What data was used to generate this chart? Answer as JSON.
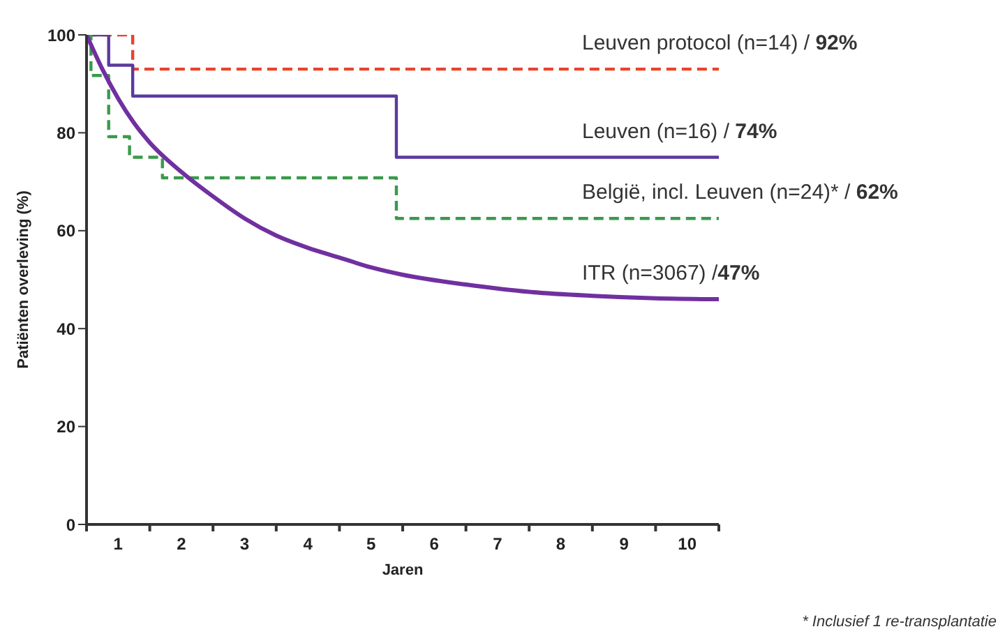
{
  "chart_data": {
    "type": "step",
    "xlabel": "Jaren",
    "ylabel": "Patiënten overleving (%)",
    "xlim": [
      0,
      10
    ],
    "xticks": [
      {
        "value": 0,
        "label": null
      },
      {
        "value": 0.5,
        "label": "1"
      },
      {
        "value": 1,
        "label": null
      },
      {
        "value": 1.5,
        "label": "2"
      },
      {
        "value": 2,
        "label": null
      },
      {
        "value": 2.5,
        "label": "3"
      },
      {
        "value": 3,
        "label": null
      },
      {
        "value": 3.5,
        "label": "4"
      },
      {
        "value": 4,
        "label": null
      },
      {
        "value": 4.5,
        "label": "5"
      },
      {
        "value": 5,
        "label": null
      },
      {
        "value": 5.5,
        "label": "6"
      },
      {
        "value": 6,
        "label": null
      },
      {
        "value": 6.5,
        "label": "7"
      },
      {
        "value": 7,
        "label": null
      },
      {
        "value": 7.5,
        "label": "8"
      },
      {
        "value": 8,
        "label": null
      },
      {
        "value": 8.5,
        "label": "9"
      },
      {
        "value": 9,
        "label": null
      },
      {
        "value": 9.5,
        "label": "10"
      },
      {
        "value": 10,
        "label": null
      }
    ],
    "ylim": [
      0,
      100
    ],
    "yticks": [
      0,
      20,
      40,
      60,
      80,
      100
    ],
    "grid": false,
    "legend": false,
    "marker": "none",
    "series": [
      {
        "name": "Leuven protocol (n=14) / 92%",
        "color": "#e8432e",
        "line_style": "dashed",
        "x": [
          0,
          0.73,
          10
        ],
        "values": [
          100,
          93,
          93
        ]
      },
      {
        "name": "Leuven (n=16) / 74%",
        "color": "#5b3a9e",
        "line_style": "solid",
        "x": [
          0,
          0.35,
          0.73,
          4.9,
          10
        ],
        "values": [
          100,
          93.8,
          87.5,
          75,
          75
        ]
      },
      {
        "name": "België, incl. Leuven (n=24)* / 62%",
        "color": "#3a9a4a",
        "line_style": "dashed",
        "x": [
          0,
          0.07,
          0.35,
          0.68,
          1.2,
          4.9,
          10
        ],
        "values": [
          100,
          91.7,
          79.2,
          75,
          70.8,
          62.5,
          62.5
        ]
      },
      {
        "name": "ITR (n=3067) /47%",
        "type": "line",
        "color": "#7030a0",
        "line_style": "solid",
        "x": [
          0,
          0.25,
          0.5,
          0.75,
          1,
          1.5,
          2,
          2.5,
          3,
          3.5,
          4,
          4.5,
          5,
          6,
          7,
          8,
          9,
          10
        ],
        "values": [
          100,
          93,
          87,
          82,
          78,
          72,
          67,
          62.5,
          59,
          56.5,
          54.5,
          52.5,
          51,
          49,
          47.5,
          46.7,
          46.2,
          46
        ]
      }
    ],
    "annotations": [
      "* Inclusief 1 re-transplantatie"
    ]
  }
}
